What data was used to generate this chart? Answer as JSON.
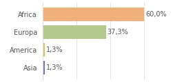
{
  "categories": [
    "Asia",
    "America",
    "Europa",
    "Africa"
  ],
  "values": [
    1.3,
    1.3,
    37.3,
    60.0
  ],
  "labels": [
    "1,3%",
    "1,3%",
    "37,3%",
    "60,0%"
  ],
  "bar_colors": [
    "#6b7abf",
    "#e8c060",
    "#b5c98e",
    "#f0b07a"
  ],
  "background_color": "#ffffff",
  "xlim": [
    0,
    75
  ],
  "label_fontsize": 7,
  "tick_fontsize": 7,
  "grid_color": "#dddddd",
  "text_color": "#555555",
  "bar_height": 0.75
}
